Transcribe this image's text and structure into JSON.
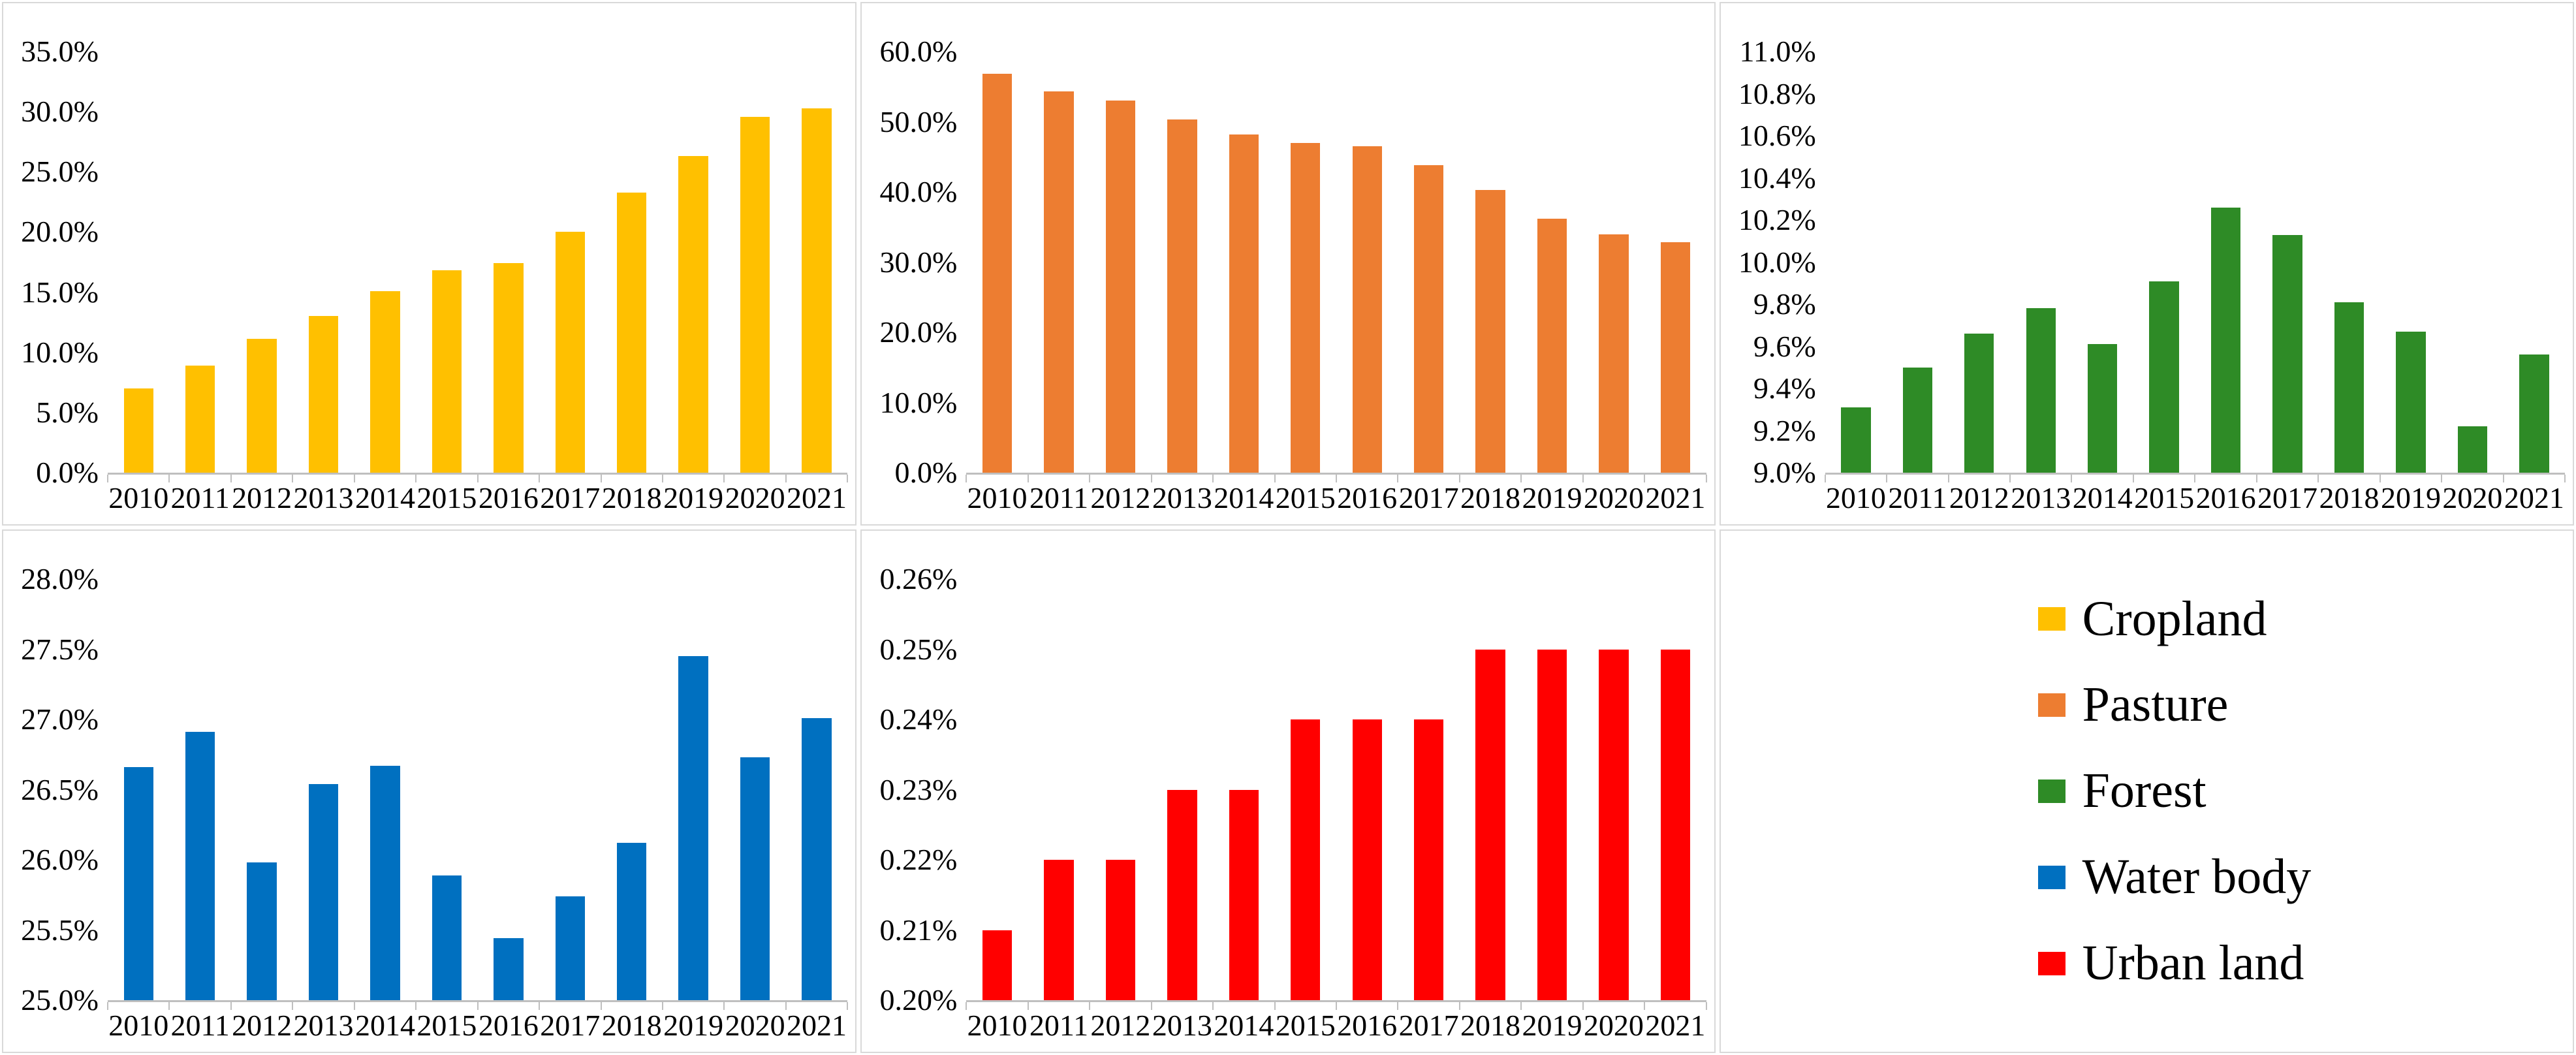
{
  "page": {
    "background": "#ffffff",
    "description_visible_content_only": "Five bar charts of land-cover percentage by year (2010-2021) plus a legend panel"
  },
  "colors": {
    "axis_line": "#bfbfbf",
    "panel_border": "#d9d9d9",
    "text": "#000000"
  },
  "chart_data": {
    "type": "bar",
    "categories": [
      "2010",
      "2011",
      "2012",
      "2013",
      "2014",
      "2015",
      "2016",
      "2017",
      "2018",
      "2019",
      "2020",
      "2021"
    ],
    "unit": "%",
    "grid": false,
    "charts": [
      {
        "name": "cropland",
        "legend_label": "Cropland",
        "color": "#FFC000",
        "ylim": [
          0.0,
          35.0
        ],
        "ytick_step": 5.0,
        "ytick_decimals": 1,
        "ytick_labels": [
          "0.0%",
          "5.0%",
          "10.0%",
          "15.0%",
          "20.0%",
          "25.0%",
          "30.0%",
          "35.0%"
        ],
        "values": [
          7.0,
          8.9,
          11.1,
          13.0,
          15.1,
          16.8,
          17.4,
          20.0,
          23.3,
          26.3,
          29.6,
          30.3
        ]
      },
      {
        "name": "pasture",
        "legend_label": "Pasture",
        "color": "#ED7D31",
        "ylim": [
          0.0,
          60.0
        ],
        "ytick_step": 10.0,
        "ytick_decimals": 1,
        "ytick_labels": [
          "0.0%",
          "10.0%",
          "20.0%",
          "30.0%",
          "40.0%",
          "50.0%",
          "60.0%"
        ],
        "values": [
          56.8,
          54.3,
          53.0,
          50.3,
          48.2,
          47.0,
          46.5,
          43.8,
          40.3,
          36.2,
          34.0,
          32.8
        ]
      },
      {
        "name": "forest",
        "legend_label": "Forest",
        "color": "#2E8B26",
        "ylim": [
          9.0,
          11.0
        ],
        "ytick_step": 0.2,
        "ytick_decimals": 1,
        "ytick_labels": [
          "9.0%",
          "9.2%",
          "9.4%",
          "9.6%",
          "9.8%",
          "10.0%",
          "10.2%",
          "10.4%",
          "10.6%",
          "10.8%",
          "11.0%"
        ],
        "values": [
          9.31,
          9.5,
          9.66,
          9.78,
          9.61,
          9.91,
          10.26,
          10.13,
          9.81,
          9.67,
          9.22,
          9.56
        ]
      },
      {
        "name": "water-body",
        "legend_label": "Water body",
        "color": "#0070C0",
        "ylim": [
          25.0,
          28.0
        ],
        "ytick_step": 0.5,
        "ytick_decimals": 1,
        "ytick_labels": [
          "25.0%",
          "25.5%",
          "26.0%",
          "26.5%",
          "27.0%",
          "27.5%",
          "28.0%"
        ],
        "values": [
          26.66,
          26.91,
          25.98,
          26.54,
          26.67,
          25.89,
          25.44,
          25.74,
          26.12,
          27.45,
          26.73,
          27.01
        ]
      },
      {
        "name": "urban-land",
        "legend_label": "Urban land",
        "color": "#FF0000",
        "ylim": [
          0.2,
          0.26
        ],
        "ytick_step": 0.01,
        "ytick_decimals": 2,
        "ytick_labels": [
          "0.20%",
          "0.21%",
          "0.22%",
          "0.23%",
          "0.24%",
          "0.25%",
          "0.26%"
        ],
        "values": [
          0.21,
          0.22,
          0.22,
          0.23,
          0.23,
          0.24,
          0.24,
          0.24,
          0.25,
          0.25,
          0.25,
          0.25
        ]
      }
    ],
    "legend": {
      "position": "bottom-right-panel",
      "items": [
        {
          "label": "Cropland",
          "color": "#FFC000"
        },
        {
          "label": "Pasture",
          "color": "#ED7D31"
        },
        {
          "label": "Forest",
          "color": "#2E8B26"
        },
        {
          "label": "Water body",
          "color": "#0070C0"
        },
        {
          "label": "Urban land",
          "color": "#FF0000"
        }
      ]
    }
  }
}
